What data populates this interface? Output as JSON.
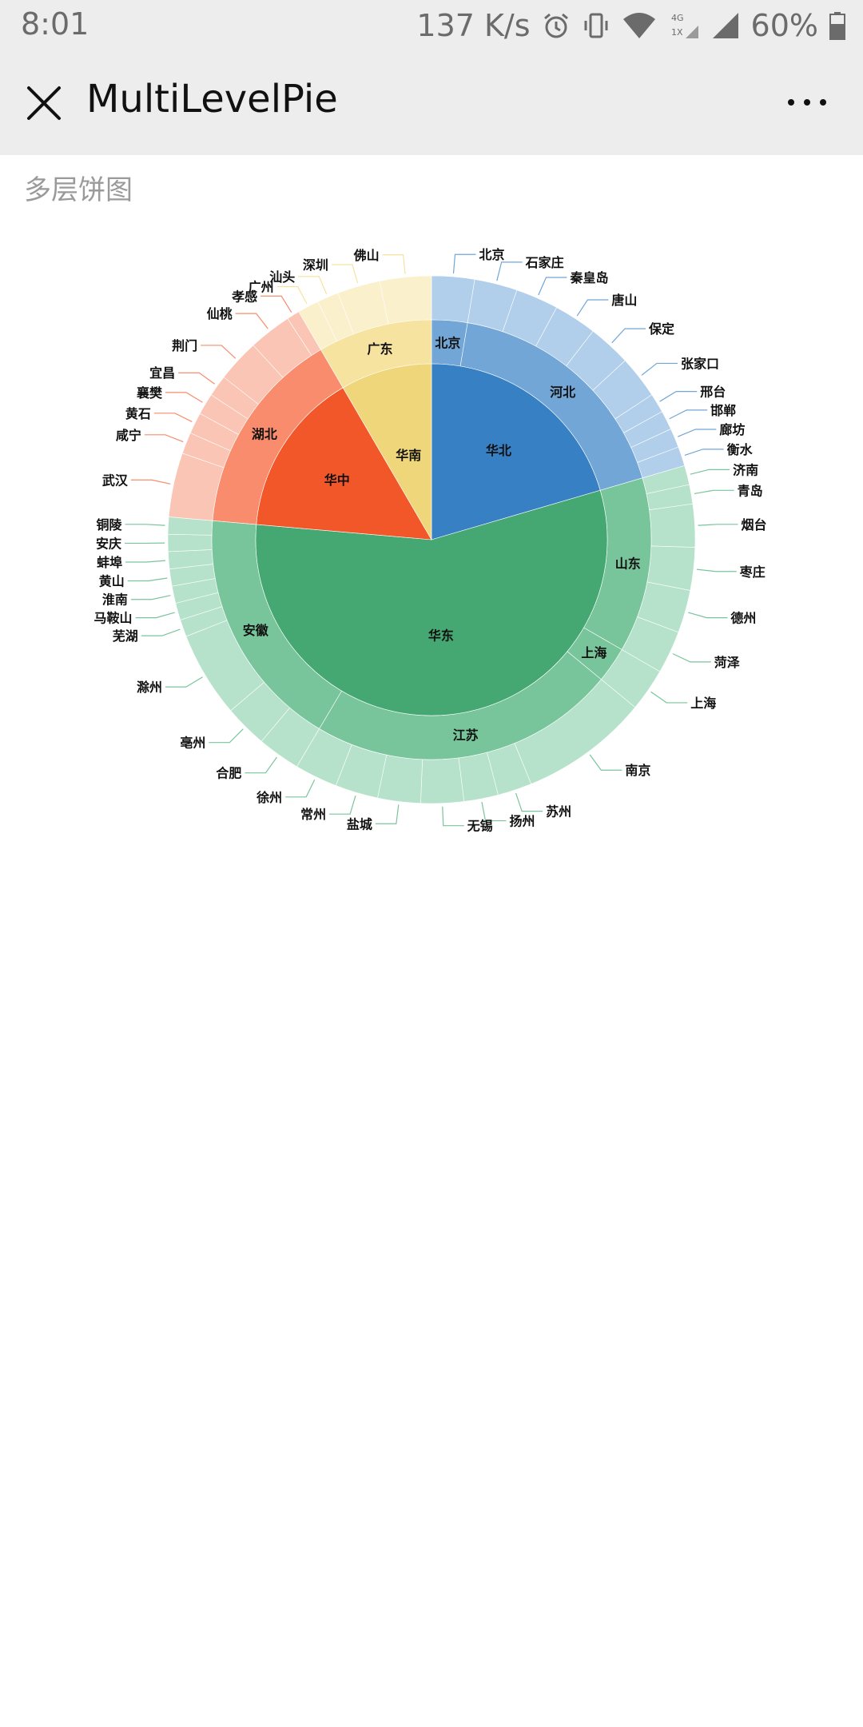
{
  "status_bar": {
    "time": "8:01",
    "speed": "137 K/s",
    "battery": "60%",
    "icons": [
      "alarm-icon",
      "vibrate-icon",
      "wifi-icon",
      "signal-4g-icon",
      "signal-icon",
      "battery-icon"
    ]
  },
  "app_bar": {
    "title": "MultiLevelPie",
    "close_icon": "close-icon",
    "more_icon": "more-icon"
  },
  "subtitle": "多层饼图",
  "colors": {
    "华北": [
      "#3880c4",
      "#72a6d7",
      "#b1cfea"
    ],
    "华东": [
      "#45a873",
      "#79c59b",
      "#b6e2cb"
    ],
    "华中": [
      "#f2572a",
      "#f88c6c",
      "#fbc5b5"
    ],
    "华南": [
      "#f0d67a",
      "#f5e39f",
      "#faf0cc"
    ]
  },
  "chart_data": {
    "type": "pie",
    "subtype": "multi-level",
    "rings": [
      "region",
      "province",
      "city"
    ],
    "regions": [
      {
        "name": "华北",
        "provinces": [
          {
            "name": "北京",
            "cities": [
              {
                "name": "北京",
                "value": 1
              }
            ]
          },
          {
            "name": "河北",
            "cities": [
              {
                "name": "石家庄",
                "value": 1
              },
              {
                "name": "秦皇岛",
                "value": 1
              },
              {
                "name": "唐山",
                "value": 1
              },
              {
                "name": "保定",
                "value": 1
              },
              {
                "name": "张家口",
                "value": 1
              },
              {
                "name": "邢台",
                "value": 0.45
              },
              {
                "name": "邯郸",
                "value": 0.45
              },
              {
                "name": "廊坊",
                "value": 0.45
              },
              {
                "name": "衡水",
                "value": 0.45
              }
            ]
          }
        ]
      },
      {
        "name": "华东",
        "provinces": [
          {
            "name": "山东",
            "cities": [
              {
                "name": "济南",
                "value": 0.45
              },
              {
                "name": "青岛",
                "value": 0.45
              },
              {
                "name": "烟台",
                "value": 1
              },
              {
                "name": "枣庄",
                "value": 1
              },
              {
                "name": "德州",
                "value": 1
              },
              {
                "name": "菏泽",
                "value": 1
              }
            ]
          },
          {
            "name": "上海",
            "cities": [
              {
                "name": "上海",
                "value": 1
              }
            ]
          },
          {
            "name": "江苏",
            "cities": [
              {
                "name": "南京",
                "value": 3
              },
              {
                "name": "苏州",
                "value": 0.8
              },
              {
                "name": "扬州",
                "value": 0.8
              },
              {
                "name": "无锡",
                "value": 1
              },
              {
                "name": "盐城",
                "value": 1
              },
              {
                "name": "常州",
                "value": 1
              },
              {
                "name": "徐州",
                "value": 1
              }
            ]
          },
          {
            "name": "安徽",
            "cities": [
              {
                "name": "合肥",
                "value": 1
              },
              {
                "name": "亳州",
                "value": 1
              },
              {
                "name": "滁州",
                "value": 2
              },
              {
                "name": "芜湖",
                "value": 0.4
              },
              {
                "name": "马鞍山",
                "value": 0.4
              },
              {
                "name": "淮南",
                "value": 0.4
              },
              {
                "name": "黄山",
                "value": 0.4
              },
              {
                "name": "蚌埠",
                "value": 0.4
              },
              {
                "name": "安庆",
                "value": 0.4
              },
              {
                "name": "铜陵",
                "value": 0.4
              }
            ]
          }
        ]
      },
      {
        "name": "华中",
        "provinces": [
          {
            "name": "湖北",
            "cities": [
              {
                "name": "武汉",
                "value": 1.5
              },
              {
                "name": "咸宁",
                "value": 0.5
              },
              {
                "name": "黄石",
                "value": 0.5
              },
              {
                "name": "襄樊",
                "value": 0.5
              },
              {
                "name": "宜昌",
                "value": 0.5
              },
              {
                "name": "荆门",
                "value": 1
              },
              {
                "name": "仙桃",
                "value": 1
              },
              {
                "name": "孝感",
                "value": 0.3
              }
            ]
          }
        ]
      },
      {
        "name": "华南",
        "provinces": [
          {
            "name": "广东",
            "cities": [
              {
                "name": "广州",
                "value": 0.5
              },
              {
                "name": "汕头",
                "value": 0.5
              },
              {
                "name": "深圳",
                "value": 1
              },
              {
                "name": "佛山",
                "value": 1.2
              }
            ]
          }
        ]
      }
    ]
  }
}
